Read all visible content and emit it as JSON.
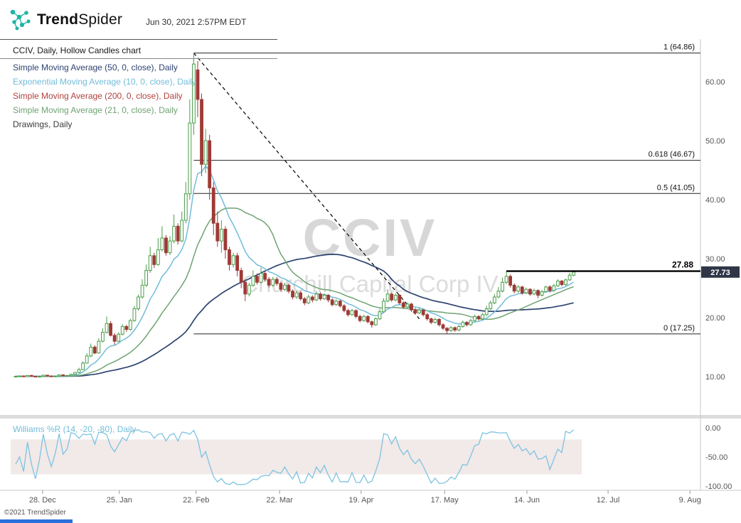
{
  "header": {
    "brand_bold": "Trend",
    "brand_light": "Spider",
    "timestamp": "Jun 30, 2021 2:57PM EDT",
    "logo_color": "#1fb5a6"
  },
  "watermark": {
    "line1": "CCIV",
    "line2": "Churchill Capital Corp IV"
  },
  "footer": {
    "copyright": "©2021 TrendSpider"
  },
  "legend": {
    "items": [
      {
        "label": "CCIV, Daily, Hollow Candles chart",
        "color": "#1a1a1a"
      },
      {
        "label": "Simple Moving Average (50, 0, close), Daily",
        "color": "#2e4370"
      },
      {
        "label": "Exponential Moving Average (10, 0, close), Daily",
        "color": "#72bcd9"
      },
      {
        "label": "Simple Moving Average (200, 0, close), Daily",
        "color": "#b0413e"
      },
      {
        "label": "Simple Moving Average (21, 0, close), Daily",
        "color": "#6fa372"
      },
      {
        "label": "Drawings, Daily",
        "color": "#3a3a3a"
      }
    ],
    "lower_panel": {
      "label": "Williams %R (14, -20, -80), Daily",
      "color": "#72bcd9"
    }
  },
  "chart_data": {
    "type": "candlestick",
    "symbol": "CCIV",
    "timeframe": "Daily",
    "style": "hollow-candles",
    "title": "CCIV, Daily, Hollow Candles chart",
    "ylim": [
      8,
      67
    ],
    "colors": {
      "up": "#4a9d4a",
      "down": "#9e3a36"
    },
    "price_axis": {
      "ticks": [
        60,
        50,
        40,
        30,
        20,
        10
      ]
    },
    "x_axis": {
      "ticks": [
        {
          "label": "28. Dec",
          "i": 6.8
        },
        {
          "label": "25. Jan",
          "i": 26.2
        },
        {
          "label": "22. Feb",
          "i": 45.6
        },
        {
          "label": "22. Mar",
          "i": 66.7
        },
        {
          "label": "19. Apr",
          "i": 87.3
        },
        {
          "label": "17. May",
          "i": 108.4
        },
        {
          "label": "14. Jun",
          "i": 129.2
        },
        {
          "label": "12. Jul",
          "i": 149.7
        },
        {
          "label": "9. Aug",
          "i": 170.4
        }
      ]
    },
    "overlays": [
      {
        "name": "SMA 50",
        "type": "sma",
        "period": 50,
        "color": "#2e4370",
        "width": 1.7
      },
      {
        "name": "SMA 21",
        "type": "sma",
        "period": 21,
        "color": "#6fa372",
        "width": 1.5
      },
      {
        "name": "EMA 10",
        "type": "ema",
        "period": 10,
        "color": "#72bcd9",
        "width": 1.5
      },
      {
        "name": "SMA 200",
        "type": "sma",
        "period": 200,
        "color": "#b0413e",
        "width": 1.5,
        "visible": false
      }
    ],
    "drawings": {
      "fib": {
        "start_i": 45,
        "levels": [
          {
            "label": "1 (64.86)",
            "price": 64.86
          },
          {
            "label": "0.618 (46.67)",
            "price": 46.67
          },
          {
            "label": "0.5 (41.05)",
            "price": 41.05
          },
          {
            "label": "0 (17.25)",
            "price": 17.25
          }
        ]
      },
      "trendline": {
        "from": {
          "i": 45,
          "price": 64.86
        },
        "to": {
          "i": 102,
          "price": 19.8
        }
      },
      "price_level": {
        "label": "27.88",
        "price": 27.88,
        "start_i": 124
      },
      "last_price_tag": {
        "label": "27.73",
        "price": 27.73,
        "bg": "#2f3647",
        "fg": "#ffffff"
      }
    },
    "lower_panel": {
      "name": "Williams %R",
      "period": 14,
      "upper_band": -20,
      "lower_band": -80,
      "band": [
        -20,
        -80
      ],
      "range": [
        0,
        -100
      ],
      "color": "#7cc4e0",
      "band_fill": "#f2e9e9",
      "axis_ticks": [
        {
          "label": "0.00",
          "v": 0
        },
        {
          "label": "-50.00",
          "v": -50
        },
        {
          "label": "-100.00",
          "v": -100
        }
      ]
    },
    "candles": [
      [
        10.0,
        10.15,
        9.9,
        10.05
      ],
      [
        10.05,
        10.2,
        9.95,
        10.1
      ],
      [
        10.1,
        10.2,
        9.95,
        10.0
      ],
      [
        10.0,
        10.25,
        9.9,
        10.2
      ],
      [
        10.2,
        10.3,
        10.0,
        10.05
      ],
      [
        10.05,
        10.15,
        9.9,
        9.95
      ],
      [
        9.95,
        10.1,
        9.85,
        10.05
      ],
      [
        10.05,
        10.3,
        10.0,
        10.25
      ],
      [
        10.25,
        10.3,
        10.05,
        10.1
      ],
      [
        10.1,
        10.2,
        9.95,
        10.0
      ],
      [
        10.0,
        10.15,
        9.9,
        10.1
      ],
      [
        10.1,
        10.35,
        10.0,
        10.3
      ],
      [
        10.3,
        10.4,
        10.1,
        10.15
      ],
      [
        10.15,
        10.25,
        10.0,
        10.2
      ],
      [
        10.2,
        10.45,
        10.1,
        10.4
      ],
      [
        10.4,
        10.8,
        10.3,
        10.7
      ],
      [
        10.7,
        11.5,
        10.6,
        11.2
      ],
      [
        11.2,
        12.6,
        11.1,
        12.3
      ],
      [
        12.3,
        14.0,
        12.2,
        13.5
      ],
      [
        13.5,
        15.6,
        13.3,
        15.0
      ],
      [
        15.0,
        15.3,
        13.8,
        14.0
      ],
      [
        14.0,
        16.5,
        13.9,
        16.0
      ],
      [
        16.0,
        18.2,
        15.8,
        17.5
      ],
      [
        17.5,
        20.2,
        17.3,
        19.0
      ],
      [
        19.0,
        19.4,
        16.8,
        17.0
      ],
      [
        17.0,
        17.4,
        15.4,
        16.0
      ],
      [
        16.0,
        17.5,
        15.8,
        17.2
      ],
      [
        17.2,
        18.9,
        17.0,
        18.5
      ],
      [
        18.5,
        18.8,
        17.6,
        18.0
      ],
      [
        18.0,
        19.8,
        17.8,
        19.5
      ],
      [
        19.5,
        22.0,
        19.3,
        21.5
      ],
      [
        21.5,
        23.9,
        21.2,
        23.5
      ],
      [
        23.5,
        26.5,
        23.2,
        25.5
      ],
      [
        25.5,
        29.0,
        25.2,
        28.0
      ],
      [
        28.0,
        32.0,
        27.6,
        30.5
      ],
      [
        30.5,
        31.0,
        28.4,
        29.0
      ],
      [
        29.0,
        33.5,
        28.8,
        31.5
      ],
      [
        31.5,
        35.5,
        31.2,
        33.5
      ],
      [
        33.5,
        34.0,
        30.5,
        31.0
      ],
      [
        31.0,
        33.8,
        30.6,
        33.0
      ],
      [
        33.0,
        37.5,
        32.6,
        35.5
      ],
      [
        35.5,
        36.0,
        32.4,
        33.0
      ],
      [
        33.0,
        38.0,
        32.8,
        36.5
      ],
      [
        36.5,
        43.0,
        36.0,
        41.0
      ],
      [
        41.0,
        57.0,
        40.0,
        53.0
      ],
      [
        53.0,
        64.86,
        51.0,
        63.0
      ],
      [
        62.0,
        63.5,
        54.0,
        57.0
      ],
      [
        57.0,
        58.0,
        44.0,
        46.0
      ],
      [
        46.0,
        52.0,
        44.5,
        50.0
      ],
      [
        50.0,
        51.0,
        40.0,
        42.0
      ],
      [
        42.0,
        43.0,
        34.0,
        36.0
      ],
      [
        36.0,
        38.0,
        32.0,
        33.0
      ],
      [
        33.0,
        36.5,
        31.0,
        35.0
      ],
      [
        35.0,
        35.5,
        30.0,
        31.5
      ],
      [
        31.5,
        32.0,
        28.0,
        29.0
      ],
      [
        29.0,
        31.0,
        28.5,
        30.5
      ],
      [
        30.5,
        31.0,
        27.0,
        28.0
      ],
      [
        28.0,
        28.5,
        25.0,
        26.0
      ],
      [
        26.0,
        26.5,
        22.8,
        24.0
      ],
      [
        24.0,
        25.9,
        23.6,
        25.5
      ],
      [
        25.5,
        28.0,
        25.2,
        27.0
      ],
      [
        27.0,
        27.5,
        25.6,
        26.0
      ],
      [
        26.0,
        28.5,
        25.8,
        27.5
      ],
      [
        27.5,
        27.9,
        26.1,
        26.5
      ],
      [
        26.5,
        26.9,
        25.1,
        25.5
      ],
      [
        25.5,
        26.9,
        25.2,
        26.5
      ],
      [
        26.5,
        26.9,
        25.4,
        25.8
      ],
      [
        25.8,
        26.1,
        24.4,
        24.8
      ],
      [
        24.8,
        25.9,
        24.5,
        25.5
      ],
      [
        25.5,
        25.8,
        24.1,
        24.5
      ],
      [
        24.5,
        24.8,
        23.1,
        23.5
      ],
      [
        23.5,
        24.6,
        23.2,
        24.2
      ],
      [
        24.2,
        24.5,
        22.9,
        23.2
      ],
      [
        23.2,
        23.5,
        22.1,
        22.5
      ],
      [
        22.5,
        23.9,
        22.3,
        23.5
      ],
      [
        23.5,
        23.8,
        22.6,
        23.0
      ],
      [
        23.0,
        24.5,
        22.8,
        24.0
      ],
      [
        24.0,
        24.3,
        22.9,
        23.2
      ],
      [
        23.2,
        24.1,
        23.0,
        23.8
      ],
      [
        23.8,
        24.0,
        22.6,
        23.0
      ],
      [
        23.0,
        23.3,
        21.9,
        22.2
      ],
      [
        22.2,
        23.1,
        22.0,
        22.8
      ],
      [
        22.8,
        23.0,
        21.7,
        22.0
      ],
      [
        22.0,
        22.3,
        20.9,
        21.2
      ],
      [
        21.2,
        21.5,
        20.2,
        20.5
      ],
      [
        20.5,
        21.5,
        20.3,
        21.2
      ],
      [
        21.2,
        21.4,
        19.9,
        20.2
      ],
      [
        20.2,
        20.5,
        19.2,
        19.5
      ],
      [
        19.5,
        20.5,
        19.3,
        20.2
      ],
      [
        20.2,
        20.4,
        19.0,
        19.3
      ],
      [
        19.3,
        19.5,
        18.3,
        18.8
      ],
      [
        18.8,
        20.0,
        18.6,
        19.8
      ],
      [
        19.8,
        21.5,
        19.6,
        21.0
      ],
      [
        21.0,
        23.3,
        20.8,
        22.8
      ],
      [
        22.8,
        24.8,
        22.6,
        24.0
      ],
      [
        24.0,
        24.3,
        22.7,
        23.0
      ],
      [
        23.0,
        24.1,
        22.8,
        23.8
      ],
      [
        23.8,
        24.0,
        22.2,
        22.5
      ],
      [
        22.5,
        22.8,
        21.5,
        21.8
      ],
      [
        21.8,
        22.6,
        21.6,
        22.3
      ],
      [
        22.3,
        22.5,
        21.0,
        21.3
      ],
      [
        21.3,
        21.6,
        20.5,
        20.8
      ],
      [
        20.8,
        21.6,
        20.6,
        21.3
      ],
      [
        21.3,
        21.5,
        20.2,
        20.5
      ],
      [
        20.5,
        20.8,
        19.5,
        19.8
      ],
      [
        19.8,
        20.0,
        18.9,
        19.2
      ],
      [
        19.2,
        20.0,
        19.0,
        19.7
      ],
      [
        19.7,
        19.9,
        18.5,
        18.8
      ],
      [
        18.8,
        19.0,
        17.9,
        18.2
      ],
      [
        18.2,
        18.4,
        17.25,
        17.8
      ],
      [
        17.8,
        18.6,
        17.6,
        18.3
      ],
      [
        18.3,
        18.5,
        17.6,
        17.9
      ],
      [
        17.9,
        18.8,
        17.7,
        18.5
      ],
      [
        18.5,
        19.5,
        18.3,
        19.2
      ],
      [
        19.2,
        19.4,
        18.5,
        18.8
      ],
      [
        18.8,
        19.8,
        18.6,
        19.5
      ],
      [
        19.5,
        20.5,
        19.3,
        20.2
      ],
      [
        20.2,
        20.4,
        19.5,
        19.8
      ],
      [
        19.8,
        20.8,
        19.6,
        20.5
      ],
      [
        20.5,
        22.0,
        20.3,
        21.5
      ],
      [
        21.5,
        22.9,
        21.3,
        22.5
      ],
      [
        22.5,
        24.0,
        22.3,
        23.5
      ],
      [
        23.5,
        25.2,
        23.3,
        24.5
      ],
      [
        24.5,
        26.8,
        24.3,
        26.0
      ],
      [
        26.0,
        27.88,
        25.7,
        27.0
      ],
      [
        27.0,
        27.3,
        25.1,
        25.5
      ],
      [
        25.5,
        25.8,
        24.1,
        24.5
      ],
      [
        24.5,
        25.5,
        24.2,
        25.2
      ],
      [
        25.2,
        25.4,
        23.9,
        24.2
      ],
      [
        24.2,
        25.1,
        24.0,
        24.8
      ],
      [
        24.8,
        25.0,
        23.7,
        24.0
      ],
      [
        24.0,
        24.9,
        23.8,
        24.6
      ],
      [
        24.6,
        24.8,
        23.3,
        23.8
      ],
      [
        23.8,
        24.7,
        23.6,
        24.4
      ],
      [
        24.4,
        25.4,
        24.2,
        25.2
      ],
      [
        25.2,
        25.5,
        24.3,
        24.6
      ],
      [
        24.6,
        25.7,
        24.4,
        25.4
      ],
      [
        25.4,
        26.5,
        25.2,
        26.2
      ],
      [
        26.2,
        26.4,
        25.3,
        25.6
      ],
      [
        25.6,
        26.6,
        25.4,
        26.4
      ],
      [
        26.4,
        27.6,
        26.2,
        27.2
      ],
      [
        27.2,
        27.88,
        27.0,
        27.73
      ]
    ]
  }
}
